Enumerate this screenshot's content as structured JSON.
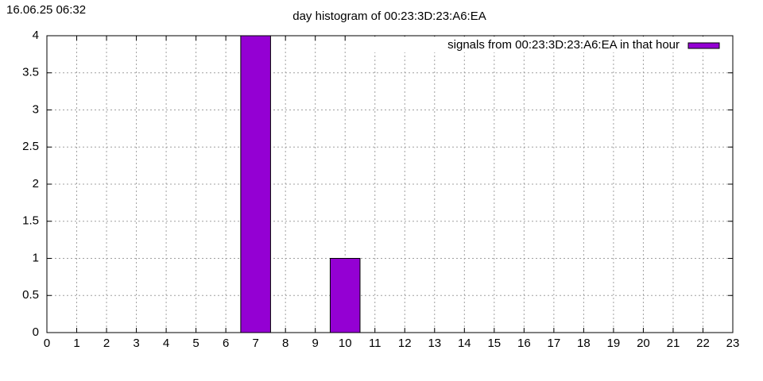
{
  "chart_data": {
    "type": "bar",
    "timestamp": "16.06.25 06:32",
    "title": "day histogram of 00:23:3D:23:A6:EA",
    "x": [
      0,
      1,
      2,
      3,
      4,
      5,
      6,
      7,
      8,
      9,
      10,
      11,
      12,
      13,
      14,
      15,
      16,
      17,
      18,
      19,
      20,
      21,
      22
    ],
    "series": [
      {
        "name": "signals from 00:23:3D:23:A6:EA in that hour",
        "color": "#9400d3",
        "values": [
          0,
          0,
          0,
          0,
          0,
          0,
          0,
          4,
          0,
          0,
          1,
          0,
          0,
          0,
          0,
          0,
          0,
          0,
          0,
          0,
          0,
          0,
          0
        ]
      }
    ],
    "xlim": [
      0,
      23
    ],
    "xticks": [
      0,
      1,
      2,
      3,
      4,
      5,
      6,
      7,
      8,
      9,
      10,
      11,
      12,
      13,
      14,
      15,
      16,
      17,
      18,
      19,
      20,
      21,
      22,
      23
    ],
    "ylim": [
      0,
      4
    ],
    "yticks": [
      0,
      0.5,
      1,
      1.5,
      2,
      2.5,
      3,
      3.5,
      4
    ],
    "grid": true,
    "legend": "top-right"
  }
}
